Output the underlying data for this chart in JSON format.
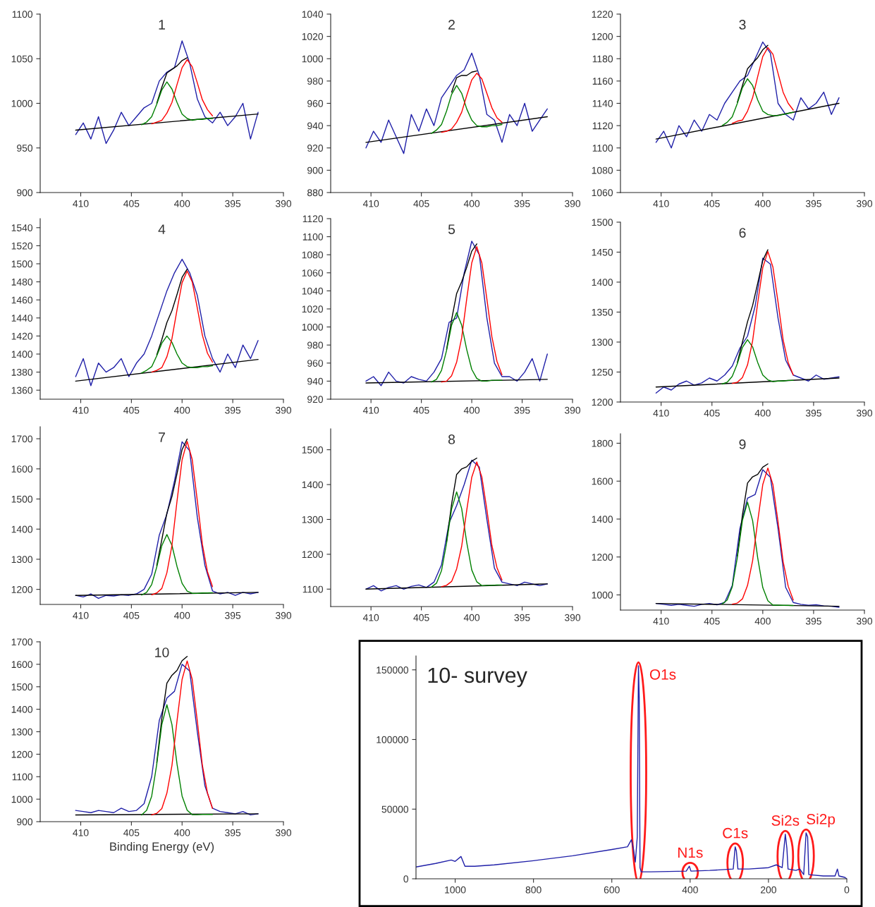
{
  "chart_data": [
    {
      "type": "line",
      "title": "1",
      "xlim": [
        414,
        390
      ],
      "xticks": [
        410,
        405,
        400,
        395,
        390
      ],
      "ylim": [
        900,
        1100
      ],
      "yticks": [
        900,
        950,
        1000,
        1050,
        1100
      ],
      "series": [
        {
          "color": "#1f1fa8",
          "x": [
            410.5,
            409.75,
            409,
            408.25,
            407.5,
            406.75,
            406,
            405.25,
            404.5,
            403.75,
            403,
            402.25,
            401.5,
            400.75,
            400,
            399.25,
            398.5,
            397.75,
            397,
            396.25,
            395.5,
            394.75,
            394,
            393.25,
            392.5
          ],
          "values": [
            965,
            978,
            960,
            985,
            955,
            970,
            990,
            975,
            985,
            995,
            1000,
            1025,
            1035,
            1040,
            1070,
            1045,
            1005,
            985,
            978,
            990,
            975,
            985,
            1000,
            960,
            990
          ]
        },
        {
          "color": "#000000",
          "x": [
            410.5,
            392.5
          ],
          "values": [
            970,
            988
          ]
        },
        {
          "color": "#000000",
          "x": [
            402.5,
            402,
            401.5,
            401,
            400.5,
            400,
            399.5
          ],
          "values": [
            1000,
            1018,
            1034,
            1038,
            1042,
            1048,
            1051
          ]
        },
        {
          "color": "#008000",
          "x": [
            404,
            403.5,
            403,
            402.5,
            402,
            401.5,
            401,
            400.5,
            400,
            399.5,
            399,
            398.5,
            398,
            397.5,
            397
          ],
          "values": [
            976,
            979,
            985,
            999,
            1015,
            1024,
            1016,
            1001,
            988,
            983,
            981,
            982,
            982,
            983,
            983
          ]
        },
        {
          "color": "#ff0000",
          "x": [
            403,
            402.5,
            402,
            401.5,
            401,
            400.5,
            400,
            399.5,
            399,
            398.5,
            398,
            397.5,
            397
          ],
          "values": [
            977,
            979,
            981,
            989,
            1001,
            1021,
            1040,
            1049,
            1041,
            1023,
            1004,
            993,
            986
          ]
        }
      ]
    },
    {
      "type": "line",
      "title": "2",
      "xlim": [
        414,
        390
      ],
      "xticks": [
        410,
        405,
        400,
        395,
        390
      ],
      "ylim": [
        880,
        1040
      ],
      "yticks": [
        880,
        900,
        920,
        940,
        960,
        980,
        1000,
        1020,
        1040
      ],
      "series": [
        {
          "color": "#1f1fa8",
          "x": [
            410.5,
            409.75,
            409,
            408.25,
            407.5,
            406.75,
            406,
            405.25,
            404.5,
            403.75,
            403,
            402.25,
            401.5,
            400.75,
            400,
            399.25,
            398.5,
            397.75,
            397,
            396.25,
            395.5,
            394.75,
            394,
            393.25,
            392.5
          ],
          "values": [
            920,
            935,
            925,
            945,
            930,
            915,
            950,
            935,
            955,
            940,
            965,
            975,
            985,
            990,
            1005,
            985,
            950,
            945,
            925,
            950,
            940,
            960,
            935,
            945,
            955
          ]
        },
        {
          "color": "#000000",
          "x": [
            410.5,
            392.5
          ],
          "values": [
            925,
            948
          ]
        },
        {
          "color": "#000000",
          "x": [
            402,
            401.5,
            401,
            400.5,
            400,
            399.5
          ],
          "values": [
            970,
            983,
            985,
            985,
            988,
            989
          ]
        },
        {
          "color": "#008000",
          "x": [
            404,
            403.5,
            403,
            402.5,
            402,
            401.5,
            401,
            400.5,
            400,
            399.5,
            399,
            398.5,
            398,
            397.5,
            397
          ],
          "values": [
            933,
            936,
            941,
            953,
            968,
            976,
            969,
            955,
            945,
            940,
            939,
            939,
            940,
            940,
            941
          ]
        },
        {
          "color": "#ff0000",
          "x": [
            403,
            402.5,
            402,
            401.5,
            401,
            400.5,
            400,
            399.5,
            399,
            398.5,
            398,
            397.5,
            397
          ],
          "values": [
            934,
            935,
            937,
            943,
            952,
            967,
            981,
            987,
            982,
            969,
            956,
            947,
            943
          ]
        }
      ]
    },
    {
      "type": "line",
      "title": "3",
      "xlim": [
        414,
        390
      ],
      "xticks": [
        410,
        405,
        400,
        395,
        390
      ],
      "ylim": [
        1060,
        1220
      ],
      "yticks": [
        1060,
        1080,
        1100,
        1120,
        1140,
        1160,
        1180,
        1200,
        1220
      ],
      "series": [
        {
          "color": "#1f1fa8",
          "x": [
            410.5,
            409.75,
            409,
            408.25,
            407.5,
            406.75,
            406,
            405.25,
            404.5,
            403.75,
            403,
            402.25,
            401.5,
            400.75,
            400,
            399.25,
            398.5,
            397.75,
            397,
            396.25,
            395.5,
            394.75,
            394,
            393.25,
            392.5
          ],
          "values": [
            1105,
            1115,
            1100,
            1120,
            1110,
            1125,
            1115,
            1130,
            1125,
            1140,
            1150,
            1160,
            1165,
            1180,
            1195,
            1185,
            1140,
            1130,
            1125,
            1145,
            1135,
            1140,
            1150,
            1130,
            1145
          ]
        },
        {
          "color": "#000000",
          "x": [
            410.5,
            392.5
          ],
          "values": [
            1108,
            1140
          ]
        },
        {
          "color": "#000000",
          "x": [
            402.5,
            402,
            401.5,
            401,
            400.5,
            400,
            399.5
          ],
          "values": [
            1141,
            1156,
            1171,
            1176,
            1181,
            1188,
            1192
          ]
        },
        {
          "color": "#008000",
          "x": [
            404,
            403.5,
            403,
            402.5,
            402,
            401.5,
            401,
            400.5,
            400,
            399.5,
            399,
            398.5,
            398,
            397.5,
            397
          ],
          "values": [
            1120,
            1123,
            1128,
            1140,
            1154,
            1162,
            1156,
            1143,
            1133,
            1130,
            1129,
            1129,
            1130,
            1131,
            1132
          ]
        },
        {
          "color": "#ff0000",
          "x": [
            403,
            402.5,
            402,
            401.5,
            401,
            400.5,
            400,
            399.5,
            399,
            398.5,
            398,
            397.5,
            397
          ],
          "values": [
            1122,
            1124,
            1125,
            1133,
            1145,
            1164,
            1182,
            1190,
            1184,
            1167,
            1150,
            1140,
            1134
          ]
        }
      ]
    },
    {
      "type": "line",
      "title": "4",
      "xlim": [
        414,
        390
      ],
      "xticks": [
        410,
        405,
        400,
        395,
        390
      ],
      "ylim": [
        1350,
        1550
      ],
      "yticks": [
        1360,
        1380,
        1400,
        1420,
        1440,
        1460,
        1480,
        1500,
        1520,
        1540
      ],
      "series": [
        {
          "color": "#1f1fa8",
          "x": [
            410.5,
            409.75,
            409,
            408.25,
            407.5,
            406.75,
            406,
            405.25,
            404.5,
            403.75,
            403,
            402.25,
            401.5,
            400.75,
            400,
            399.25,
            398.5,
            397.75,
            397,
            396.25,
            395.5,
            394.75,
            394,
            393.25,
            392.5
          ],
          "values": [
            1375,
            1395,
            1365,
            1390,
            1380,
            1385,
            1395,
            1375,
            1390,
            1400,
            1420,
            1445,
            1470,
            1490,
            1505,
            1490,
            1465,
            1420,
            1395,
            1380,
            1400,
            1385,
            1410,
            1395,
            1415
          ]
        },
        {
          "color": "#000000",
          "x": [
            410.5,
            392.5
          ],
          "values": [
            1370,
            1394
          ]
        },
        {
          "color": "#000000",
          "x": [
            402.5,
            402,
            401.5,
            401,
            400.5,
            400,
            399.5
          ],
          "values": [
            1399,
            1416,
            1435,
            1448,
            1466,
            1485,
            1494
          ]
        },
        {
          "color": "#008000",
          "x": [
            404,
            403.5,
            403,
            402.5,
            402,
            401.5,
            401,
            400.5,
            400,
            399.5,
            399,
            398.5,
            398,
            397.5,
            397
          ],
          "values": [
            1379,
            1382,
            1386,
            1398,
            1412,
            1420,
            1413,
            1400,
            1390,
            1386,
            1385,
            1385,
            1386,
            1386,
            1387
          ]
        },
        {
          "color": "#ff0000",
          "x": [
            403,
            402.5,
            402,
            401.5,
            401,
            400.5,
            400,
            399.5,
            399,
            398.5,
            398,
            397.5,
            397
          ],
          "values": [
            1380,
            1382,
            1385,
            1397,
            1417,
            1449,
            1479,
            1492,
            1480,
            1451,
            1421,
            1401,
            1391
          ]
        }
      ]
    },
    {
      "type": "line",
      "title": "5",
      "xlim": [
        414,
        390
      ],
      "xticks": [
        410,
        405,
        400,
        395,
        390
      ],
      "ylim": [
        920,
        1120
      ],
      "yticks": [
        920,
        940,
        960,
        980,
        1000,
        1020,
        1040,
        1060,
        1080,
        1100,
        1120
      ],
      "series": [
        {
          "color": "#1f1fa8",
          "x": [
            410.5,
            409.75,
            409,
            408.25,
            407.5,
            406.75,
            406,
            405.25,
            404.5,
            403.75,
            403,
            402.25,
            401.5,
            400.75,
            400,
            399.25,
            398.5,
            397.75,
            397,
            396.25,
            395.5,
            394.75,
            394,
            393.25,
            392.5
          ],
          "values": [
            940,
            945,
            935,
            950,
            940,
            938,
            945,
            942,
            940,
            950,
            965,
            1005,
            1010,
            1060,
            1095,
            1080,
            1010,
            960,
            945,
            945,
            940,
            950,
            965,
            940,
            970
          ]
        },
        {
          "color": "#000000",
          "x": [
            410.5,
            392.5
          ],
          "values": [
            938,
            942
          ]
        },
        {
          "color": "#000000",
          "x": [
            402.5,
            402,
            401.5,
            401,
            400.5,
            400,
            399.5
          ],
          "values": [
            975,
            1008,
            1037,
            1050,
            1066,
            1084,
            1092
          ]
        },
        {
          "color": "#008000",
          "x": [
            404,
            403.5,
            403,
            402.5,
            402,
            401.5,
            401,
            400.5,
            400,
            399.5,
            399,
            398.5,
            398,
            397.5,
            397
          ],
          "values": [
            939,
            942,
            952,
            974,
            1002,
            1016,
            1002,
            975,
            953,
            943,
            940,
            940,
            941,
            941,
            941
          ]
        },
        {
          "color": "#ff0000",
          "x": [
            403,
            402.5,
            402,
            401.5,
            401,
            400.5,
            400,
            399.5,
            399,
            398.5,
            398,
            397.5,
            397
          ],
          "values": [
            939,
            940,
            946,
            961,
            988,
            1031,
            1071,
            1089,
            1071,
            1031,
            989,
            962,
            947
          ]
        }
      ]
    },
    {
      "type": "line",
      "title": "6",
      "xlim": [
        414,
        390
      ],
      "xticks": [
        410,
        405,
        400,
        395,
        390
      ],
      "ylim": [
        1200,
        1500
      ],
      "yticks": [
        1200,
        1250,
        1300,
        1350,
        1400,
        1450,
        1500
      ],
      "series": [
        {
          "color": "#1f1fa8",
          "x": [
            410.5,
            409.75,
            409,
            408.25,
            407.5,
            406.75,
            406,
            405.25,
            404.5,
            403.75,
            403,
            402.25,
            401.5,
            400.75,
            400,
            399.25,
            398.5,
            397.75,
            397,
            396.25,
            395.5,
            394.75,
            394,
            393.25,
            392.5
          ],
          "values": [
            1215,
            1225,
            1220,
            1230,
            1235,
            1228,
            1232,
            1240,
            1235,
            1245,
            1260,
            1290,
            1310,
            1360,
            1440,
            1430,
            1340,
            1270,
            1245,
            1240,
            1235,
            1245,
            1238,
            1240,
            1242
          ]
        },
        {
          "color": "#000000",
          "x": [
            410.5,
            392.5
          ],
          "values": [
            1225,
            1240
          ]
        },
        {
          "color": "#000000",
          "x": [
            402.5,
            402,
            401.5,
            401,
            400.5,
            400,
            399.5
          ],
          "values": [
            1266,
            1300,
            1334,
            1361,
            1398,
            1436,
            1454
          ]
        },
        {
          "color": "#008000",
          "x": [
            404,
            403.5,
            403,
            402.5,
            402,
            401.5,
            401,
            400.5,
            400,
            399.5,
            399,
            398.5,
            398,
            397.5,
            397
          ],
          "values": [
            1230,
            1233,
            1243,
            1264,
            1291,
            1304,
            1292,
            1266,
            1245,
            1237,
            1234,
            1235,
            1235,
            1236,
            1236
          ]
        },
        {
          "color": "#ff0000",
          "x": [
            403,
            402.5,
            402,
            401.5,
            401,
            400.5,
            400,
            399.5,
            399,
            398.5,
            398,
            397.5,
            397
          ],
          "values": [
            1231,
            1233,
            1241,
            1262,
            1302,
            1365,
            1424,
            1451,
            1425,
            1367,
            1304,
            1266,
            1245
          ]
        }
      ]
    },
    {
      "type": "line",
      "title": "7",
      "xlim": [
        414,
        390
      ],
      "xticks": [
        410,
        405,
        400,
        395,
        390
      ],
      "ylim": [
        1150,
        1740
      ],
      "yticks": [
        1200,
        1300,
        1400,
        1500,
        1600,
        1700
      ],
      "series": [
        {
          "color": "#1f1fa8",
          "x": [
            410.5,
            409.75,
            409,
            408.25,
            407.5,
            406.75,
            406,
            405.25,
            404.5,
            403.75,
            403,
            402.25,
            401.5,
            400.75,
            400,
            399.25,
            398.5,
            397.75,
            397,
            396.25,
            395.5,
            394.75,
            394,
            393.25,
            392.5
          ],
          "values": [
            1180,
            1175,
            1185,
            1170,
            1180,
            1178,
            1182,
            1180,
            1185,
            1200,
            1250,
            1380,
            1450,
            1560,
            1690,
            1660,
            1440,
            1280,
            1195,
            1185,
            1190,
            1180,
            1190,
            1185,
            1190
          ]
        },
        {
          "color": "#000000",
          "x": [
            410.5,
            392.5
          ],
          "values": [
            1180,
            1190
          ]
        },
        {
          "color": "#000000",
          "x": [
            402.5,
            402,
            401.5,
            401,
            400.5,
            400,
            399.5
          ],
          "values": [
            1279,
            1365,
            1453,
            1508,
            1584,
            1664,
            1699
          ]
        },
        {
          "color": "#008000",
          "x": [
            404,
            403.5,
            403,
            402.5,
            402,
            401.5,
            401,
            400.5,
            400,
            399.5,
            399,
            398.5,
            398,
            397.5,
            397
          ],
          "values": [
            1181,
            1190,
            1216,
            1274,
            1345,
            1382,
            1346,
            1276,
            1220,
            1194,
            1187,
            1187,
            1188,
            1188,
            1189
          ]
        },
        {
          "color": "#ff0000",
          "x": [
            403,
            402.5,
            402,
            401.5,
            401,
            400.5,
            400,
            399.5,
            399,
            398.5,
            398,
            397.5,
            397
          ],
          "values": [
            1182,
            1188,
            1203,
            1255,
            1346,
            1493,
            1630,
            1691,
            1631,
            1495,
            1350,
            1259,
            1209
          ]
        }
      ]
    },
    {
      "type": "line",
      "title": "8",
      "xlim": [
        414,
        390
      ],
      "xticks": [
        410,
        405,
        400,
        395,
        390
      ],
      "ylim": [
        1050,
        1560
      ],
      "yticks": [
        1100,
        1200,
        1300,
        1400,
        1500
      ],
      "series": [
        {
          "color": "#1f1fa8",
          "x": [
            410.5,
            409.75,
            409,
            408.25,
            407.5,
            406.75,
            406,
            405.25,
            404.5,
            403.75,
            403,
            402.25,
            401.5,
            400.75,
            400,
            399.25,
            398.5,
            397.75,
            397,
            396.25,
            395.5,
            394.75,
            394,
            393.25,
            392.5
          ],
          "values": [
            1100,
            1110,
            1095,
            1105,
            1110,
            1100,
            1108,
            1112,
            1105,
            1120,
            1170,
            1290,
            1340,
            1400,
            1470,
            1450,
            1300,
            1160,
            1120,
            1115,
            1110,
            1120,
            1115,
            1110,
            1115
          ]
        },
        {
          "color": "#000000",
          "x": [
            410.5,
            392.5
          ],
          "values": [
            1100,
            1115
          ]
        },
        {
          "color": "#000000",
          "x": [
            402.5,
            402,
            401.5,
            401,
            400.5,
            400,
            399.5
          ],
          "values": [
            1236,
            1344,
            1429,
            1445,
            1451,
            1467,
            1476
          ]
        },
        {
          "color": "#008000",
          "x": [
            404,
            403.5,
            403,
            402.5,
            402,
            401.5,
            401,
            400.5,
            400,
            399.5,
            399,
            398.5,
            398,
            397.5,
            397
          ],
          "values": [
            1106,
            1117,
            1153,
            1232,
            1330,
            1379,
            1331,
            1234,
            1155,
            1121,
            1110,
            1111,
            1111,
            1112,
            1112
          ]
        },
        {
          "color": "#ff0000",
          "x": [
            403,
            402.5,
            402,
            401.5,
            401,
            400.5,
            400,
            399.5,
            399,
            398.5,
            398,
            397.5,
            397
          ],
          "values": [
            1107,
            1111,
            1122,
            1158,
            1223,
            1326,
            1421,
            1465,
            1422,
            1328,
            1225,
            1162,
            1126
          ]
        }
      ]
    },
    {
      "type": "line",
      "title": "9",
      "xlim": [
        414,
        390
      ],
      "xticks": [
        410,
        405,
        400,
        395,
        390
      ],
      "ylim": [
        920,
        1850
      ],
      "yticks": [
        1000,
        1200,
        1400,
        1600,
        1800
      ],
      "series": [
        {
          "color": "#1f1fa8",
          "x": [
            410.5,
            409.75,
            409,
            408.25,
            407.5,
            406.75,
            406,
            405.25,
            404.5,
            403.75,
            403,
            402.25,
            401.5,
            400.75,
            400,
            399.25,
            398.5,
            397.75,
            397,
            396.25,
            395.5,
            394.75,
            394,
            393.25,
            392.5
          ],
          "values": [
            955,
            950,
            945,
            950,
            945,
            940,
            950,
            955,
            948,
            960,
            1050,
            1350,
            1510,
            1530,
            1660,
            1620,
            1350,
            1040,
            960,
            950,
            945,
            948,
            942,
            940,
            935
          ]
        },
        {
          "color": "#000000",
          "x": [
            410.5,
            392.5
          ],
          "values": [
            955,
            940
          ]
        },
        {
          "color": "#000000",
          "x": [
            402.5,
            402,
            401.5,
            401,
            400.5,
            400,
            399.5
          ],
          "values": [
            1205,
            1422,
            1590,
            1623,
            1636,
            1674,
            1691
          ]
        },
        {
          "color": "#008000",
          "x": [
            404,
            403.5,
            403,
            402.5,
            402,
            401.5,
            401,
            400.5,
            400,
            399.5,
            399,
            398.5,
            398,
            397.5,
            397
          ],
          "values": [
            952,
            973,
            1043,
            1198,
            1393,
            1489,
            1392,
            1196,
            1039,
            969,
            946,
            946,
            945,
            945,
            944
          ]
        },
        {
          "color": "#ff0000",
          "x": [
            403,
            402.5,
            402,
            401.5,
            401,
            400.5,
            400,
            399.5,
            399,
            398.5,
            398,
            397.5,
            397
          ],
          "values": [
            951,
            957,
            979,
            1050,
            1180,
            1388,
            1582,
            1669,
            1581,
            1386,
            1176,
            1046,
            973
          ]
        }
      ]
    },
    {
      "type": "line",
      "title": "10",
      "xlabel": "Binding Energy (eV)",
      "xlim": [
        414,
        390
      ],
      "xticks": [
        410,
        405,
        400,
        395,
        390
      ],
      "ylim": [
        900,
        1700
      ],
      "yticks": [
        900,
        1000,
        1100,
        1200,
        1300,
        1400,
        1500,
        1600,
        1700
      ],
      "series": [
        {
          "color": "#1f1fa8",
          "x": [
            410.5,
            409.75,
            409,
            408.25,
            407.5,
            406.75,
            406,
            405.25,
            404.5,
            403.75,
            403,
            402.25,
            401.5,
            400.75,
            400,
            399.25,
            398.5,
            397.75,
            397,
            396.25,
            395.5,
            394.75,
            394,
            393.25,
            392.5
          ],
          "values": [
            950,
            945,
            940,
            950,
            945,
            940,
            960,
            945,
            950,
            980,
            1100,
            1350,
            1450,
            1480,
            1600,
            1570,
            1300,
            1060,
            960,
            945,
            940,
            935,
            945,
            930,
            935
          ]
        },
        {
          "color": "#000000",
          "x": [
            410.5,
            392.5
          ],
          "values": [
            930,
            935
          ]
        },
        {
          "color": "#000000",
          "x": [
            402.5,
            402,
            401.5,
            401,
            400.5,
            400,
            399.5
          ],
          "values": [
            1162,
            1359,
            1516,
            1551,
            1573,
            1616,
            1635
          ]
        },
        {
          "color": "#008000",
          "x": [
            404,
            403.5,
            403,
            402.5,
            402,
            401.5,
            401,
            400.5,
            400,
            399.5,
            399,
            398.5,
            398,
            397.5,
            397
          ],
          "values": [
            930,
            950,
            1013,
            1155,
            1332,
            1420,
            1332,
            1156,
            1014,
            951,
            931,
            931,
            932,
            932,
            932
          ]
        },
        {
          "color": "#ff0000",
          "x": [
            403,
            402.5,
            402,
            401.5,
            401,
            400.5,
            400,
            399.5,
            399,
            398.5,
            398,
            397.5,
            397
          ],
          "values": [
            930,
            937,
            958,
            1027,
            1150,
            1348,
            1533,
            1615,
            1533,
            1348,
            1151,
            1028,
            959
          ]
        }
      ]
    },
    {
      "type": "line",
      "title": "10- survey",
      "xlim": [
        1100,
        0
      ],
      "xticks": [
        0,
        200,
        400,
        600,
        800,
        1000
      ],
      "ylim": [
        0,
        160000
      ],
      "yticks": [
        0,
        50000,
        100000,
        150000
      ],
      "annotations": [
        {
          "text": "O1s",
          "x": 532,
          "y": 153000
        },
        {
          "text": "N1s",
          "x": 400,
          "y": 9000
        },
        {
          "text": "C1s",
          "x": 285,
          "y": 23000
        },
        {
          "text": "Si2s",
          "x": 157,
          "y": 32000
        },
        {
          "text": "Si2p",
          "x": 104,
          "y": 33000
        }
      ],
      "series": [
        {
          "color": "#1f1fa8",
          "x": [
            1100,
            1050,
            1010,
            1000,
            985,
            975,
            950,
            900,
            800,
            700,
            600,
            560,
            550,
            545,
            540,
            535,
            532,
            530,
            528,
            525,
            500,
            410,
            402,
            398,
            350,
            290,
            285,
            282,
            278,
            250,
            200,
            180,
            165,
            157,
            153,
            150,
            130,
            120,
            110,
            104,
            100,
            97,
            60,
            30,
            24,
            20,
            5,
            0
          ],
          "values": [
            8500,
            11000,
            13500,
            12500,
            16000,
            9000,
            9000,
            10000,
            13000,
            16500,
            21000,
            23000,
            28000,
            22000,
            12000,
            30000,
            153000,
            130000,
            8000,
            5000,
            5000,
            5500,
            9000,
            5500,
            6000,
            7000,
            23000,
            20000,
            7000,
            7000,
            8000,
            10000,
            8000,
            32000,
            22000,
            7000,
            6000,
            7000,
            3000,
            33000,
            30000,
            3000,
            2000,
            2000,
            7000,
            2000,
            1000,
            0
          ]
        }
      ]
    }
  ]
}
